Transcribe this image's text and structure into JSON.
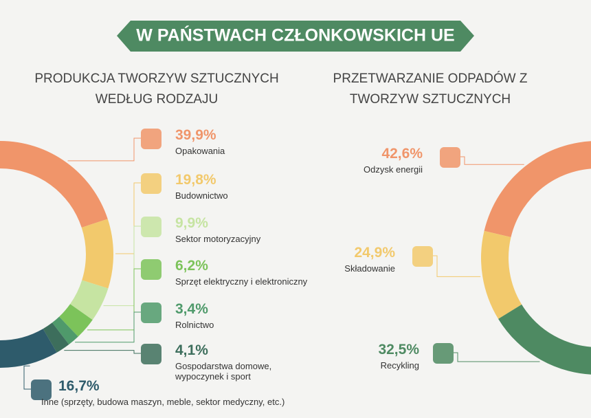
{
  "header": {
    "title": "W PAŃSTWACH CZŁONKOWSKICH UE"
  },
  "chart_data": [
    {
      "type": "half-donut",
      "title": "PRODUKCJA TWORZYW SZTUCZNYCH WEDŁUG RODZAJU",
      "categories": [
        "Opakowania",
        "Budownictwo",
        "Sektor motoryzacyjny",
        "Sprzęt elektryczny i elektroniczny",
        "Rolnictwo",
        "Gospodarstwa domowe, wypoczynek i sport",
        "Inne (sprzęty, budowa maszyn, meble, sektor medyczny, etc.)"
      ],
      "values": [
        39.9,
        19.8,
        9.9,
        6.2,
        3.4,
        4.1,
        16.7
      ],
      "value_labels": [
        "39,9%",
        "19,8%",
        "9,9%",
        "6,2%",
        "3,4%",
        "4,1%",
        "16,7%"
      ],
      "colors": [
        "#f0956a",
        "#f2c96c",
        "#c6e4a2",
        "#7cc35a",
        "#4f9a6b",
        "#3d6e5c",
        "#2e5b6b"
      ]
    },
    {
      "type": "half-donut",
      "title": "PRZETWARZANIE ODPADÓW Z TWORZYW SZTUCZNYCH",
      "categories": [
        "Odzysk energii",
        "Składowanie",
        "Recykling"
      ],
      "values": [
        42.6,
        24.9,
        32.5
      ],
      "value_labels": [
        "42,6%",
        "24,9%",
        "32,5%"
      ],
      "colors": [
        "#f0956a",
        "#f2c96c",
        "#4e8a62"
      ]
    }
  ]
}
